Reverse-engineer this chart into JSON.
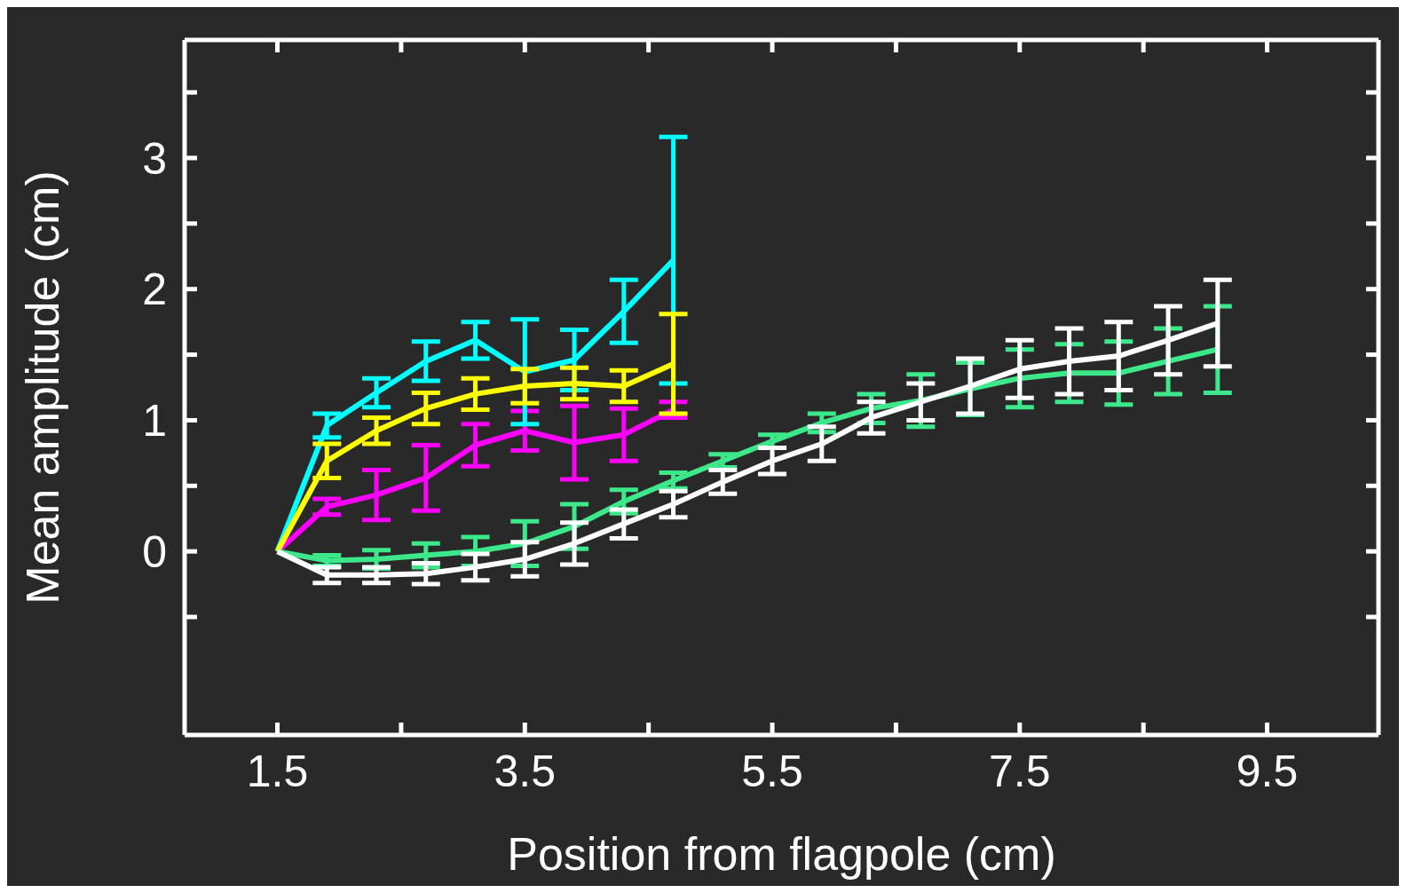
{
  "chart_data": {
    "type": "line",
    "xlabel": "Position from flagpole (cm)",
    "ylabel": "Mean amplitude (cm)",
    "x": [
      1.5,
      1.9,
      2.3,
      2.7,
      3.1,
      3.5,
      3.9,
      4.3,
      4.7,
      5.1,
      5.5,
      5.9,
      6.3,
      6.7,
      7.1,
      7.5,
      7.9,
      8.3,
      8.7,
      9.1
    ],
    "xlim": [
      0.75,
      10.4
    ],
    "xticks": [
      1.5,
      {
        "value": 2.5,
        "label": null
      },
      3.5,
      {
        "value": 4.5,
        "label": null
      },
      5.5,
      {
        "value": 6.5,
        "label": null
      },
      7.5,
      {
        "value": 8.5,
        "label": null
      },
      9.5
    ],
    "ylim": [
      -1.4,
      3.9
    ],
    "yticks": [
      {
        "value": -0.5,
        "label": null
      },
      0,
      {
        "value": 0.5,
        "label": null
      },
      1,
      {
        "value": 1.5,
        "label": null
      },
      2,
      {
        "value": 2.5,
        "label": null
      },
      3,
      {
        "value": 3.5,
        "label": null
      }
    ],
    "grid": false,
    "legend": false,
    "marker": "none",
    "line_style": "solid",
    "series": [
      {
        "color": "#ff00ff",
        "values": [
          0,
          0.34,
          0.43,
          0.56,
          0.81,
          0.92,
          0.83,
          0.89,
          1.08,
          null,
          null,
          null,
          null,
          null,
          null,
          null,
          null,
          null,
          null,
          null
        ],
        "errors": [
          null,
          0.06,
          0.19,
          0.25,
          0.16,
          0.15,
          0.28,
          0.2,
          0.06,
          null,
          null,
          null,
          null,
          null,
          null,
          null,
          null,
          null,
          null,
          null
        ]
      },
      {
        "color": "#00ffff",
        "values": [
          0,
          0.96,
          1.21,
          1.45,
          1.61,
          1.37,
          1.46,
          1.83,
          2.22,
          null,
          null,
          null,
          null,
          null,
          null,
          null,
          null,
          null,
          null,
          null
        ],
        "errors": [
          null,
          0.09,
          0.11,
          0.15,
          0.14,
          0.4,
          0.23,
          0.24,
          0.94,
          null,
          null,
          null,
          null,
          null,
          null,
          null,
          null,
          null,
          null,
          null
        ]
      },
      {
        "color": "#ffff00",
        "values": [
          0,
          0.69,
          0.92,
          1.09,
          1.2,
          1.26,
          1.28,
          1.26,
          1.43,
          null,
          null,
          null,
          null,
          null,
          null,
          null,
          null,
          null,
          null,
          null
        ],
        "errors": [
          null,
          0.13,
          0.1,
          0.12,
          0.12,
          0.13,
          0.12,
          0.12,
          0.38,
          null,
          null,
          null,
          null,
          null,
          null,
          null,
          null,
          null,
          null,
          null
        ]
      },
      {
        "color": "#3de88a",
        "values": [
          0,
          -0.07,
          -0.06,
          -0.03,
          0,
          0.06,
          0.19,
          0.38,
          0.54,
          0.69,
          0.84,
          0.98,
          1.09,
          1.15,
          1.24,
          1.32,
          1.36,
          1.36,
          1.45,
          1.54
        ],
        "errors": [
          null,
          0.04,
          0.07,
          0.09,
          0.11,
          0.17,
          0.17,
          0.09,
          0.06,
          0.05,
          0.05,
          0.07,
          0.11,
          0.2,
          0.2,
          0.22,
          0.22,
          0.24,
          0.25,
          0.33
        ]
      },
      {
        "color": "#ffffff",
        "values": [
          0,
          -0.18,
          -0.18,
          -0.17,
          -0.12,
          -0.06,
          0.06,
          0.21,
          0.36,
          0.53,
          0.69,
          0.82,
          1.02,
          1.14,
          1.26,
          1.39,
          1.45,
          1.49,
          1.61,
          1.74
        ],
        "errors": [
          null,
          0.06,
          0.06,
          0.08,
          0.1,
          0.13,
          0.16,
          0.11,
          0.1,
          0.09,
          0.1,
          0.13,
          0.12,
          0.14,
          0.21,
          0.22,
          0.25,
          0.26,
          0.26,
          0.33
        ]
      }
    ]
  }
}
